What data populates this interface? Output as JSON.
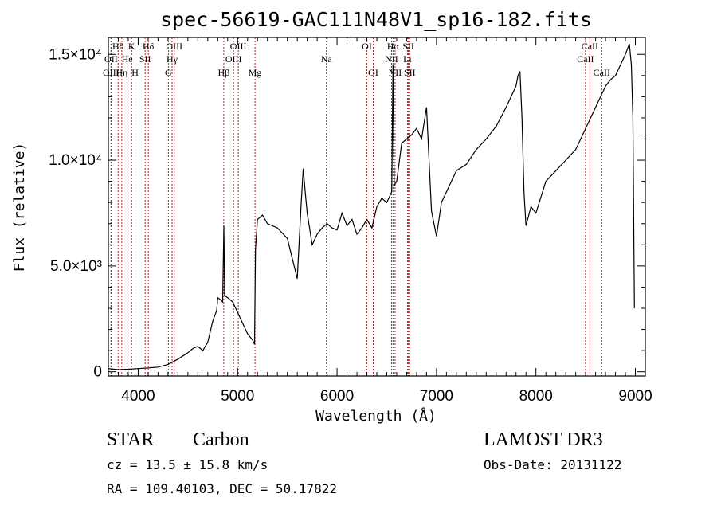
{
  "title": "spec-56619-GAC111N48V1_sp16-182.fits",
  "chart_data": {
    "type": "line",
    "xlabel": "Wavelength (Å)",
    "ylabel": "Flux (relative)",
    "xlim": [
      3700,
      9100
    ],
    "ylim": [
      -200,
      15800
    ],
    "xticks": [
      4000,
      5000,
      6000,
      7000,
      8000,
      9000
    ],
    "xtick_labels": [
      "4000",
      "5000",
      "6000",
      "7000",
      "8000",
      "9000"
    ],
    "yticks": [
      0,
      5000,
      10000,
      15000
    ],
    "ytick_labels": [
      "0",
      "5.0×10³",
      "1.0×10⁴",
      "1.5×10⁴"
    ],
    "series": [
      {
        "x": [
          3700,
          3800,
          3900,
          4000,
          4100,
          4200,
          4300,
          4400,
          4500,
          4550,
          4600,
          4650,
          4700,
          4750,
          4790,
          4800,
          4830,
          4850,
          4862,
          4870,
          4900,
          4950,
          5000,
          5050,
          5100,
          5150,
          5170,
          5180,
          5200,
          5250,
          5300,
          5400,
          5500,
          5600,
          5640,
          5660,
          5680,
          5700,
          5750,
          5800,
          5850,
          5900,
          5950,
          6000,
          6050,
          6100,
          6150,
          6200,
          6250,
          6300,
          6350,
          6400,
          6450,
          6500,
          6550,
          6563,
          6575,
          6600,
          6650,
          6700,
          6750,
          6800,
          6850,
          6900,
          6950,
          7000,
          7050,
          7100,
          7150,
          7200,
          7300,
          7400,
          7500,
          7600,
          7700,
          7750,
          7800,
          7820,
          7840,
          7860,
          7880,
          7900,
          7950,
          8000,
          8100,
          8200,
          8300,
          8400,
          8500,
          8550,
          8600,
          8650,
          8700,
          8750,
          8800,
          8850,
          8900,
          8940,
          8960,
          8975,
          8990
        ],
        "y": [
          150,
          100,
          120,
          150,
          180,
          220,
          350,
          600,
          900,
          1100,
          1200,
          1000,
          1400,
          2400,
          2900,
          3500,
          3400,
          3300,
          6900,
          3600,
          3500,
          3300,
          2800,
          2300,
          1800,
          1500,
          1300,
          5800,
          7200,
          7400,
          7000,
          6800,
          6300,
          4400,
          8000,
          9600,
          8500,
          7500,
          6000,
          6500,
          6800,
          7000,
          6800,
          6700,
          7500,
          6900,
          7200,
          6500,
          6800,
          7200,
          6800,
          7800,
          8200,
          8000,
          8500,
          14500,
          8800,
          9000,
          10800,
          11000,
          11200,
          11500,
          11000,
          12500,
          7600,
          6400,
          8000,
          8500,
          9000,
          9500,
          9800,
          10500,
          11000,
          11600,
          12500,
          13000,
          13500,
          14000,
          14200,
          12000,
          8500,
          6900,
          7800,
          7500,
          9000,
          9500,
          10000,
          10500,
          11500,
          12000,
          12500,
          13000,
          13500,
          13800,
          14000,
          14500,
          15000,
          15500,
          14500,
          12000,
          3000
        ]
      }
    ],
    "lines": [
      {
        "label": "Hθ",
        "x": 3798,
        "row": 0,
        "xoff": 0
      },
      {
        "label": "OII",
        "x": 3727,
        "row": 1,
        "xoff": 0
      },
      {
        "label": "OIII",
        "x": 3727,
        "row": 2,
        "xoff": 0
      },
      {
        "label": "K",
        "x": 3934,
        "row": 0,
        "xoff": 0
      },
      {
        "label": "He",
        "x": 3889,
        "row": 1,
        "xoff": 0
      },
      {
        "label": "Hη",
        "x": 3835,
        "row": 2,
        "xoff": 0
      },
      {
        "label": "H",
        "x": 3969,
        "row": 2,
        "xoff": 0
      },
      {
        "label": "Hδ",
        "x": 4102,
        "row": 0,
        "xoff": 0
      },
      {
        "label": "SII",
        "x": 4070,
        "row": 1,
        "xoff": 0
      },
      {
        "label": "OIII",
        "x": 4363,
        "row": 0,
        "xoff": 0
      },
      {
        "label": "Hγ",
        "x": 4341,
        "row": 1,
        "xoff": 0
      },
      {
        "label": "G",
        "x": 4304,
        "row": 2,
        "xoff": 0
      },
      {
        "label": "Hβ",
        "x": 4861,
        "row": 2,
        "xoff": 0
      },
      {
        "label": "OIII",
        "x": 4959,
        "row": 1,
        "xoff": 0
      },
      {
        "label": "OIII",
        "x": 5007,
        "row": 0,
        "xoff": 0
      },
      {
        "label": "Mg",
        "x": 5175,
        "row": 2,
        "xoff": 0
      },
      {
        "label": "Na",
        "x": 5893,
        "row": 1,
        "xoff": 0
      },
      {
        "label": "OI",
        "x": 6300,
        "row": 0,
        "xoff": 0
      },
      {
        "label": "OI",
        "x": 6364,
        "row": 2,
        "xoff": 0
      },
      {
        "label": "Hα",
        "x": 6563,
        "row": 0,
        "xoff": 0
      },
      {
        "label": "NII",
        "x": 6548,
        "row": 1,
        "xoff": 0
      },
      {
        "label": "NII",
        "x": 6584,
        "row": 2,
        "xoff": 0
      },
      {
        "label": "SII",
        "x": 6717,
        "row": 0,
        "xoff": 0
      },
      {
        "label": "Li",
        "x": 6708,
        "row": 1,
        "xoff": 0
      },
      {
        "label": "SII",
        "x": 6731,
        "row": 2,
        "xoff": 0
      },
      {
        "label": "CaII",
        "x": 8542,
        "row": 0,
        "xoff": 0
      },
      {
        "label": "CaII",
        "x": 8498,
        "row": 1,
        "xoff": 0
      },
      {
        "label": "CaII",
        "x": 8662,
        "row": 2,
        "xoff": 0
      }
    ]
  },
  "info": {
    "class": "STAR",
    "subclass": "Carbon",
    "survey": "LAMOST DR3",
    "cz": "cz = 13.5 ± 15.8 km/s",
    "obs_date": "Obs-Date: 20131122",
    "radec": "RA = 109.40103, DEC =  50.17822"
  }
}
